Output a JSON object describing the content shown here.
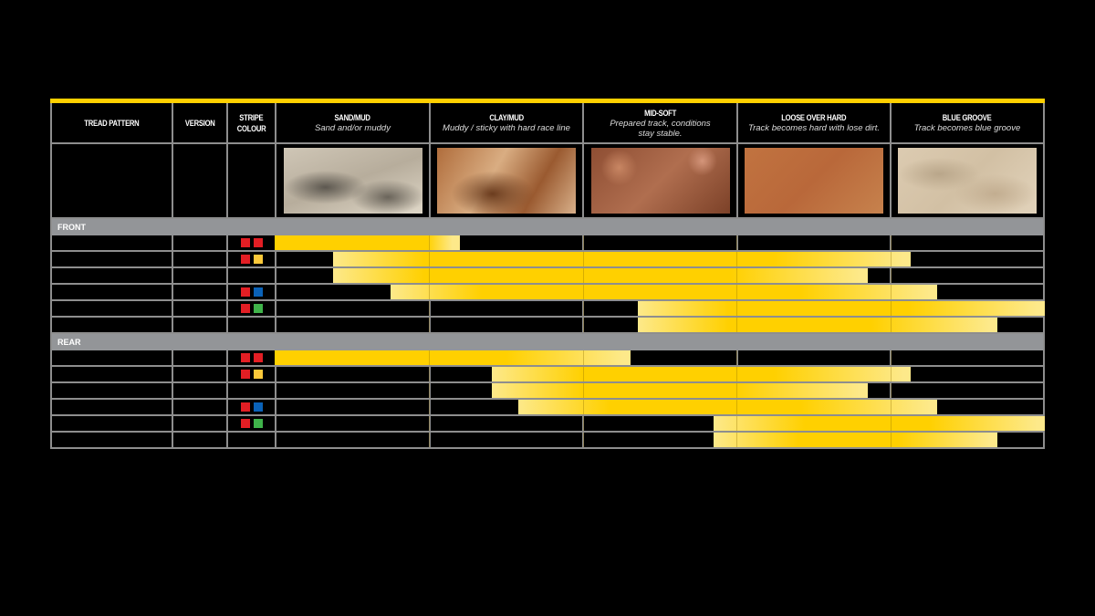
{
  "columns": {
    "tread_pattern": "TREAD PATTERN",
    "version": "VERSION",
    "stripe_colour_1": "STRIPE",
    "stripe_colour_2": "COLOUR"
  },
  "conditions": [
    {
      "name": "SAND/MUD",
      "desc": "Sand and/or muddy",
      "photo": "sand"
    },
    {
      "name": "CLAY/MUD",
      "desc": "Muddy / sticky with hard race line",
      "photo": "clay"
    },
    {
      "name": "MID-SOFT",
      "desc": "Prepared track, conditions stay stable.",
      "photo": "midsoft"
    },
    {
      "name": "LOOSE OVER HARD",
      "desc": "Track becomes hard with lose dirt.",
      "photo": "loose"
    },
    {
      "name": "BLUE GROOVE",
      "desc": "Track becomes blue groove",
      "photo": "blue"
    }
  ],
  "colors": {
    "accent": "#ffd000",
    "bar_light": "#fde98a",
    "band": "#939598",
    "grid": "#8e8e8e",
    "red": "#e31e24",
    "yellow": "#fcc93a",
    "blue": "#0a62b8",
    "green": "#3fb34a"
  },
  "chart_data": {
    "type": "bar",
    "orientation": "horizontal-range",
    "x_axis": "track condition (0 = Sand/Mud start, 5 = Blue Groove end)",
    "categories": [
      "SAND/MUD",
      "CLAY/MUD",
      "MID-SOFT",
      "LOOSE OVER HARD",
      "BLUE GROOVE"
    ],
    "xlim": [
      0,
      5
    ],
    "sections": [
      {
        "label": "FRONT",
        "rows": [
          {
            "stripes": [
              "red",
              "red"
            ],
            "start": 0,
            "end": 1.2
          },
          {
            "stripes": [
              "red",
              "yellow"
            ],
            "start": 0.38,
            "end": 4.13
          },
          {
            "stripes": [],
            "start": 0.38,
            "end": 3.85
          },
          {
            "stripes": [
              "red",
              "blue"
            ],
            "start": 0.75,
            "end": 4.3
          },
          {
            "stripes": [
              "red",
              "green"
            ],
            "start": 2.36,
            "end": 5
          },
          {
            "stripes": [],
            "start": 2.36,
            "end": 4.69
          }
        ]
      },
      {
        "label": "REAR",
        "rows": [
          {
            "stripes": [
              "red",
              "red"
            ],
            "start": 0,
            "end": 2.31
          },
          {
            "stripes": [
              "red",
              "yellow"
            ],
            "start": 1.41,
            "end": 4.13
          },
          {
            "stripes": [],
            "start": 1.41,
            "end": 3.85
          },
          {
            "stripes": [
              "red",
              "blue"
            ],
            "start": 1.58,
            "end": 4.3
          },
          {
            "stripes": [
              "red",
              "green"
            ],
            "start": 2.85,
            "end": 5
          },
          {
            "stripes": [],
            "start": 2.85,
            "end": 4.69
          }
        ]
      }
    ]
  }
}
